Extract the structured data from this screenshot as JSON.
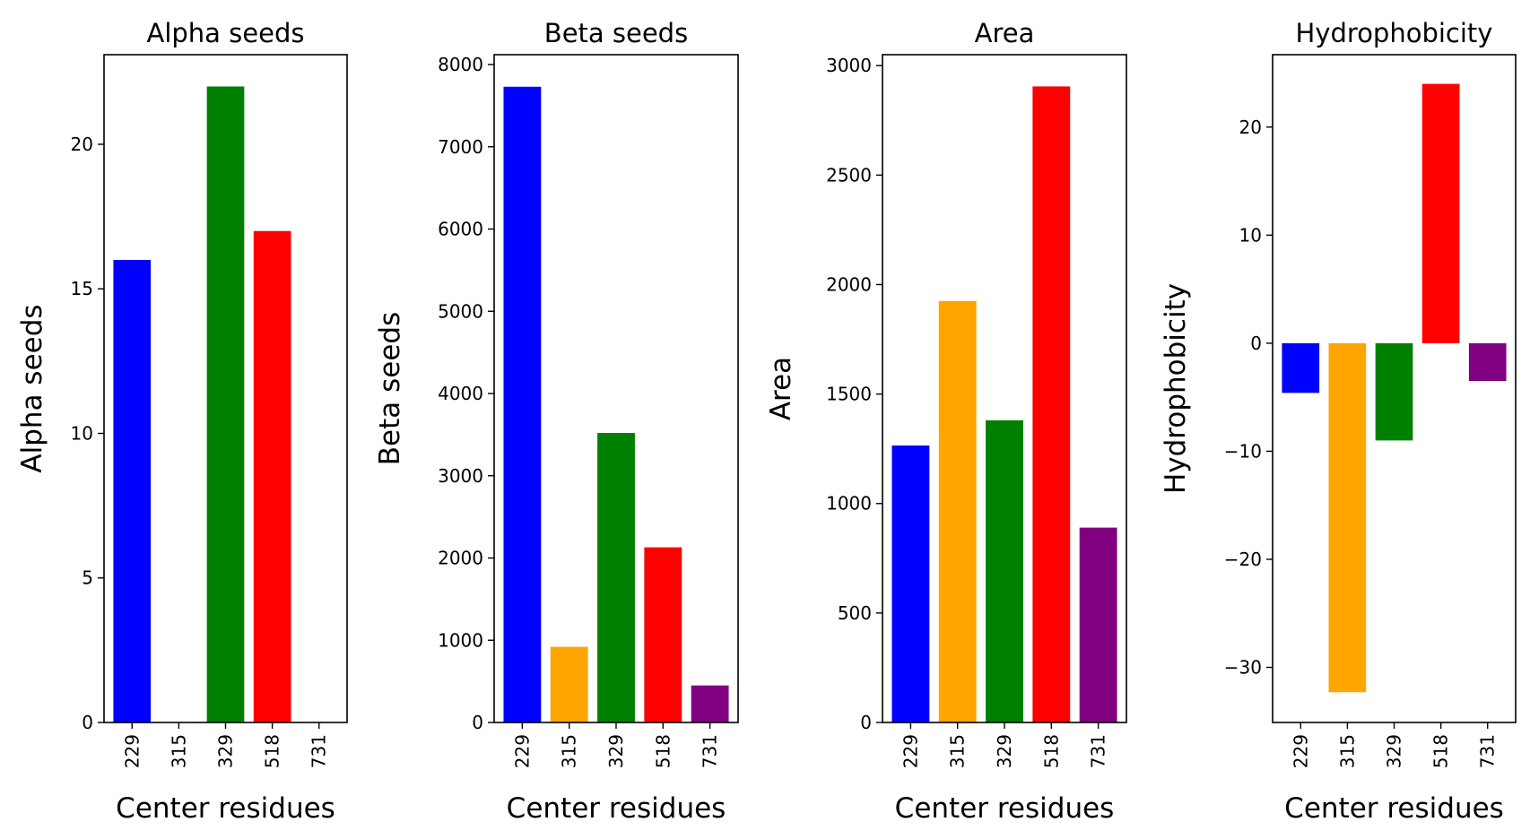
{
  "chart_data": [
    {
      "type": "bar",
      "title": "Alpha seeds",
      "xlabel": "Center residues",
      "ylabel": "Alpha seeds",
      "categories": [
        "229",
        "315",
        "329",
        "518",
        "731"
      ],
      "values": [
        16,
        0,
        22,
        17,
        0
      ],
      "colors": [
        "#0000ff",
        "#ffa500",
        "#008000",
        "#ff0000",
        "#800080"
      ],
      "ylim": [
        0,
        23.1
      ],
      "yticks": [
        0,
        5,
        10,
        15,
        20
      ],
      "ytick_labels": [
        "0",
        "5",
        "10",
        "15",
        "20"
      ]
    },
    {
      "type": "bar",
      "title": "Beta seeds",
      "xlabel": "Center residues",
      "ylabel": "Beta seeds",
      "categories": [
        "229",
        "315",
        "329",
        "518",
        "731"
      ],
      "values": [
        7730,
        920,
        3520,
        2130,
        450
      ],
      "colors": [
        "#0000ff",
        "#ffa500",
        "#008000",
        "#ff0000",
        "#800080"
      ],
      "ylim": [
        0,
        8120
      ],
      "yticks": [
        0,
        1000,
        2000,
        3000,
        4000,
        5000,
        6000,
        7000,
        8000
      ],
      "ytick_labels": [
        "0",
        "1000",
        "2000",
        "3000",
        "4000",
        "5000",
        "6000",
        "7000",
        "8000"
      ]
    },
    {
      "type": "bar",
      "title": "Area",
      "xlabel": "Center residues",
      "ylabel": "Area",
      "categories": [
        "229",
        "315",
        "329",
        "518",
        "731"
      ],
      "values": [
        1265,
        1925,
        1380,
        2905,
        890
      ],
      "colors": [
        "#0000ff",
        "#ffa500",
        "#008000",
        "#ff0000",
        "#800080"
      ],
      "ylim": [
        0,
        3050
      ],
      "yticks": [
        0,
        500,
        1000,
        1500,
        2000,
        2500,
        3000
      ],
      "ytick_labels": [
        "0",
        "500",
        "1000",
        "1500",
        "2000",
        "2500",
        "3000"
      ]
    },
    {
      "type": "bar",
      "title": "Hydrophobicity",
      "xlabel": "Center residues",
      "ylabel": "Hydrophobicity",
      "categories": [
        "229",
        "315",
        "329",
        "518",
        "731"
      ],
      "values": [
        -4.6,
        -32.3,
        -9.0,
        24.0,
        -3.5
      ],
      "colors": [
        "#0000ff",
        "#ffa500",
        "#008000",
        "#ff0000",
        "#800080"
      ],
      "ylim": [
        -35.1,
        26.7
      ],
      "yticks": [
        -30,
        -20,
        -10,
        0,
        10,
        20
      ],
      "ytick_labels": [
        "−30",
        "−20",
        "−10",
        "0",
        "10",
        "20"
      ]
    }
  ]
}
